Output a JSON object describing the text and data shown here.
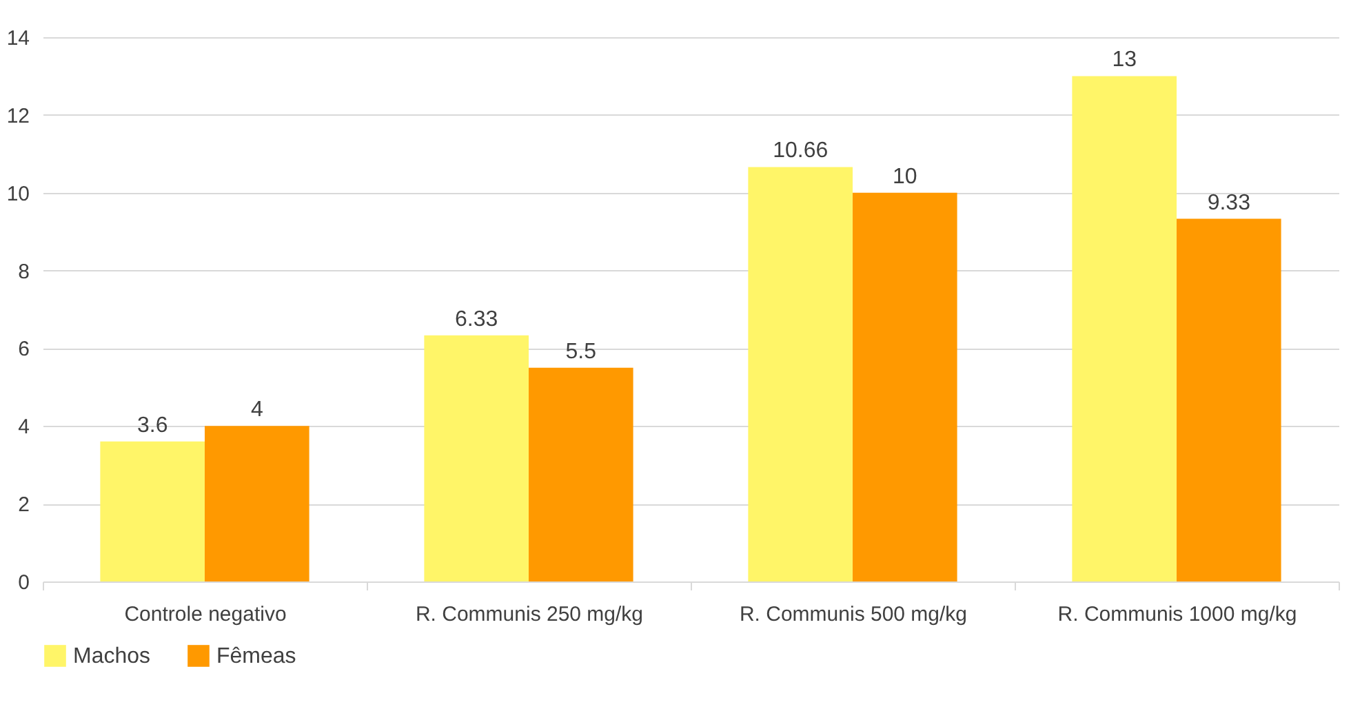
{
  "chart_data": {
    "type": "bar",
    "categories": [
      "Controle negativo",
      "R. Communis 250 mg/kg",
      "R. Communis 500 mg/kg",
      "R. Communis 1000 mg/kg"
    ],
    "series": [
      {
        "name": "Machos",
        "color": "#fff568",
        "values": [
          3.6,
          6.33,
          10.66,
          13
        ]
      },
      {
        "name": "Fêmeas",
        "color": "#ff9900",
        "values": [
          4,
          5.5,
          10,
          9.33
        ]
      }
    ],
    "ylim": [
      0,
      14
    ],
    "yticks": [
      0,
      2,
      4,
      6,
      8,
      10,
      12,
      14
    ],
    "grid": "y",
    "legend": "bottom",
    "data_labels": true
  }
}
